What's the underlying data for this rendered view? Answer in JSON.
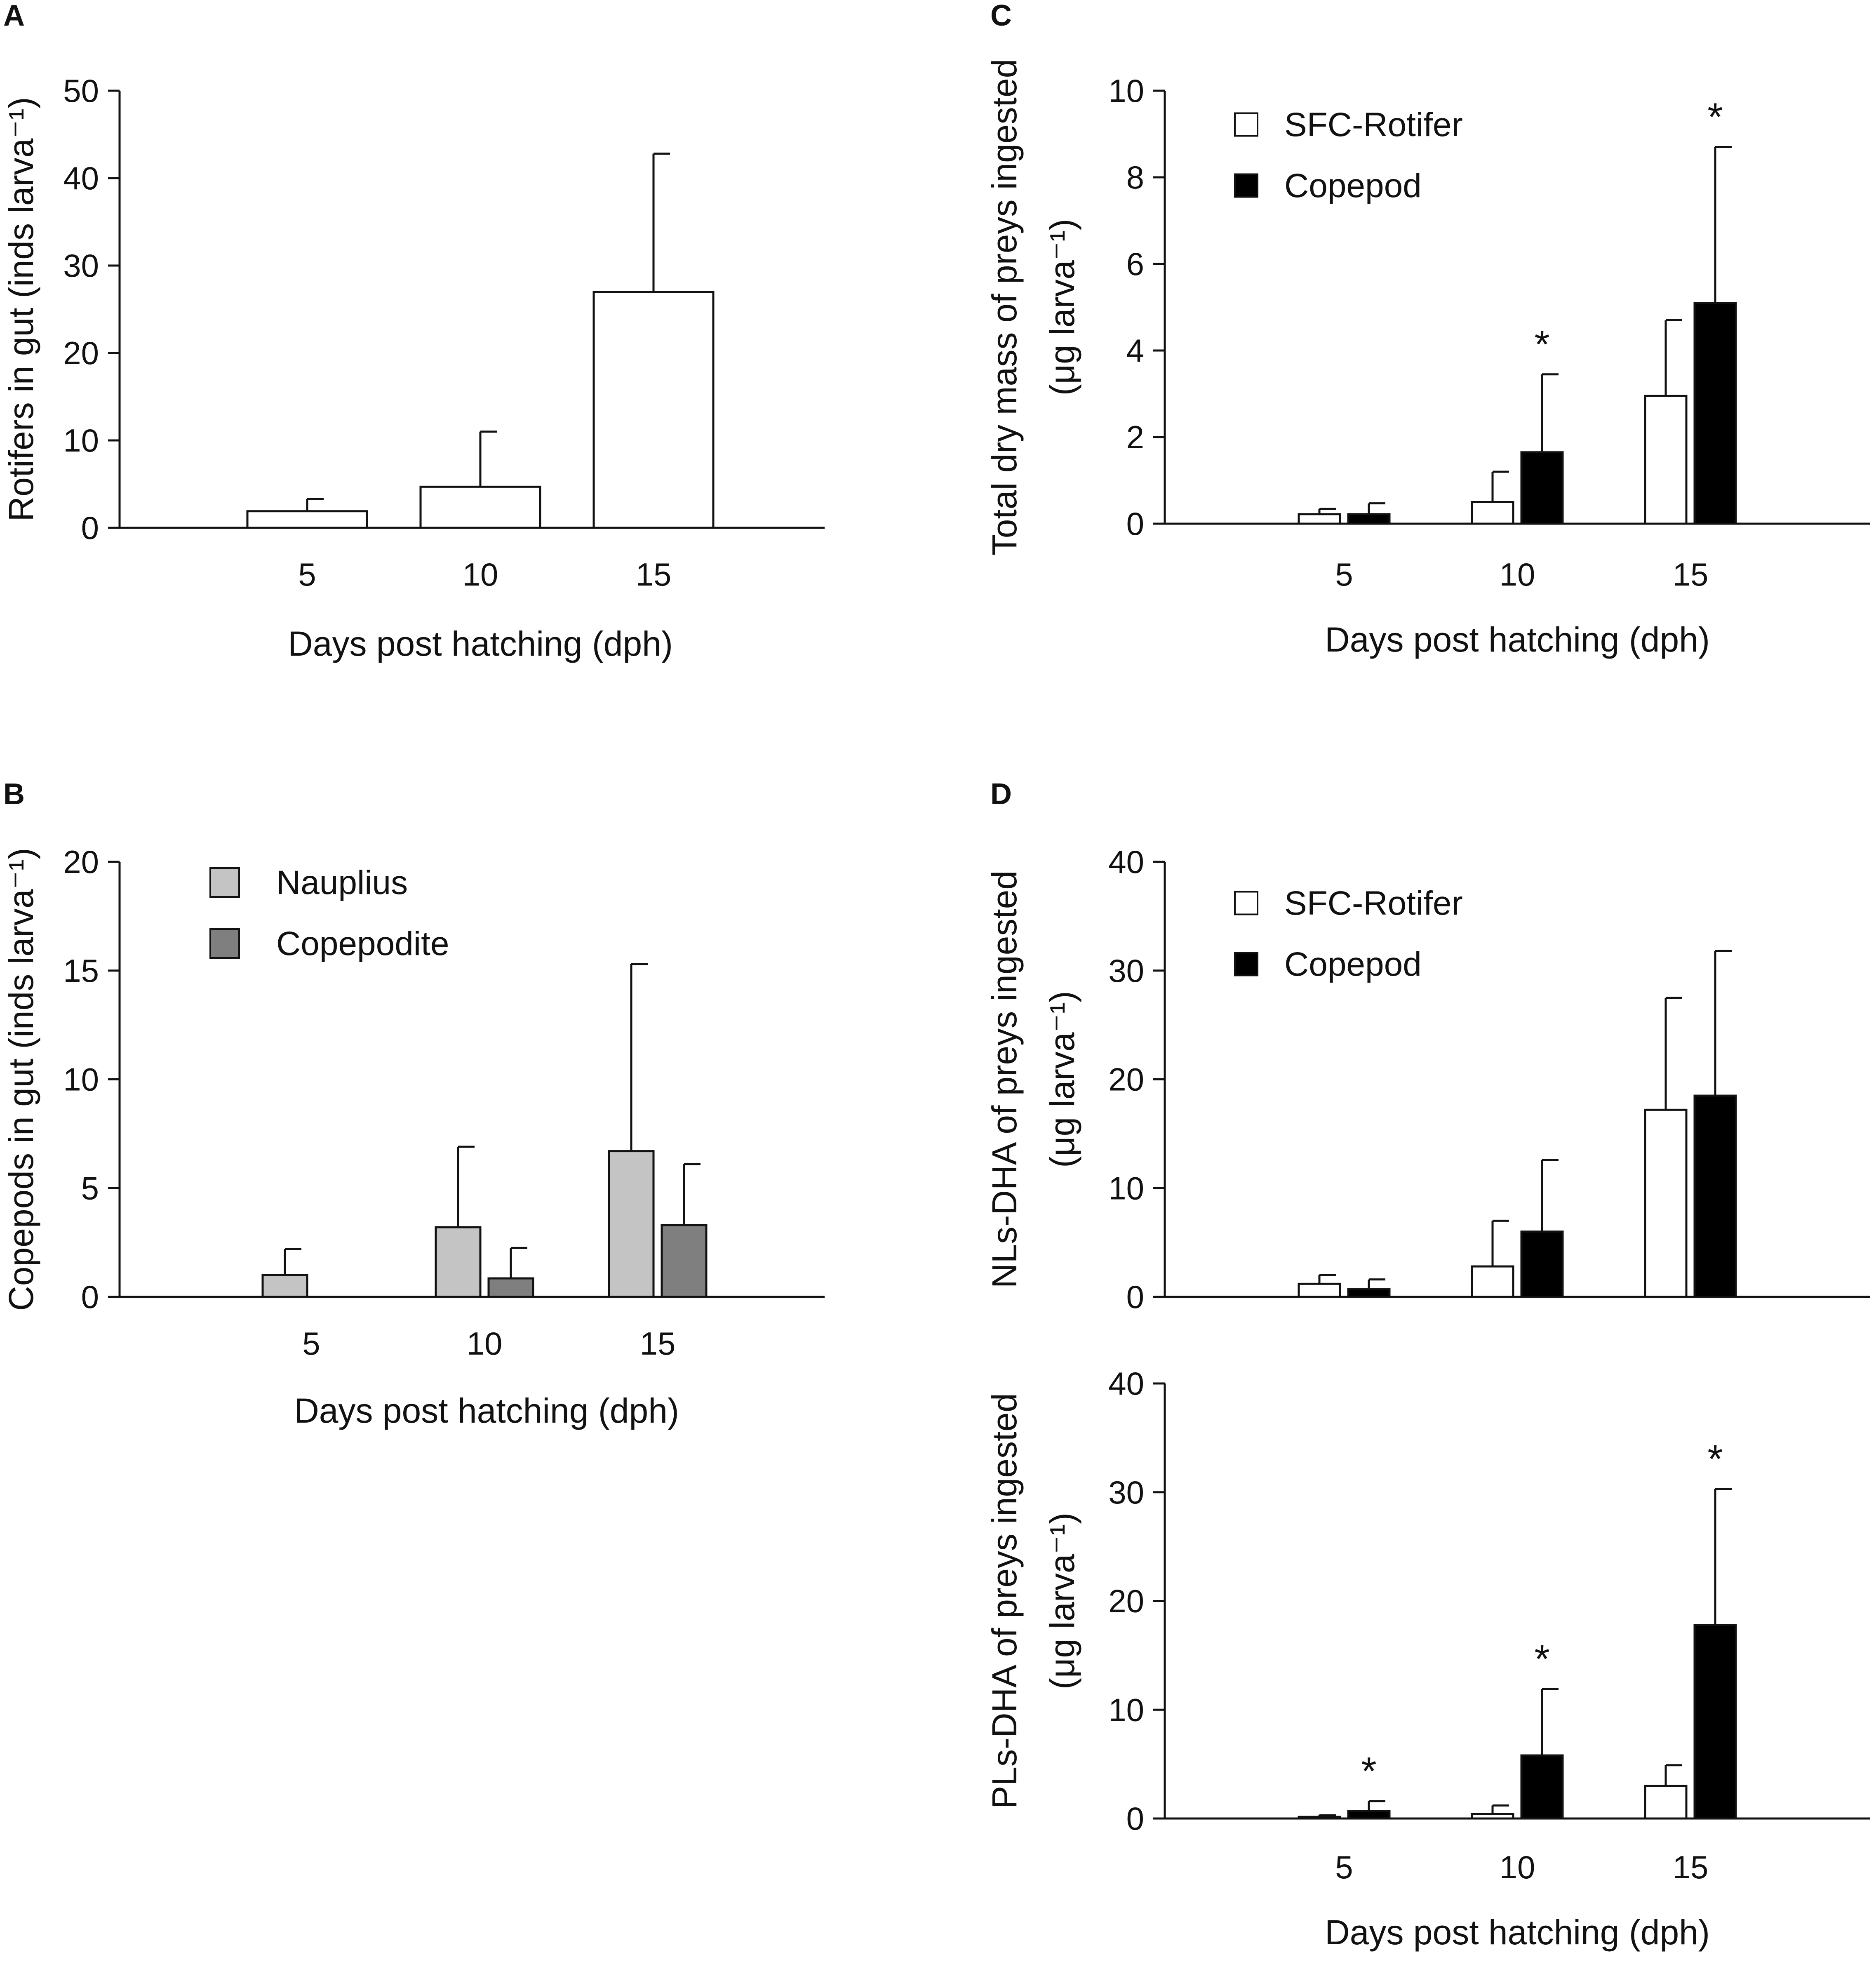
{
  "figure": {
    "panels": [
      "A",
      "B",
      "C",
      "D"
    ]
  },
  "colors": {
    "white_bar": "#ffffff",
    "black_bar": "#000000",
    "nauplius": "#c4c4c4",
    "copepodite": "#7f7f7f",
    "axis": "#111111"
  },
  "chart_data": [
    {
      "id": "A",
      "type": "bar",
      "panel_label": "A",
      "xlabel": "Days post hatching (dph)",
      "ylabel": "Rotifers in gut (inds larva⁻¹)",
      "ylim": [
        0,
        50
      ],
      "yticks": [
        0,
        10,
        20,
        30,
        40,
        50
      ],
      "categories": [
        "5",
        "10",
        "15"
      ],
      "series": [
        {
          "name": "Rotifer",
          "color": "#ffffff",
          "values": [
            1.9,
            4.7,
            27.0
          ],
          "errors": [
            1.4,
            6.3,
            15.8
          ],
          "sig": [
            "",
            "",
            ""
          ]
        }
      ],
      "legend": []
    },
    {
      "id": "B",
      "type": "bar",
      "panel_label": "B",
      "xlabel": "Days post hatching (dph)",
      "ylabel": "Copepods in gut (inds larva⁻¹)",
      "ylim": [
        0,
        20
      ],
      "yticks": [
        0,
        5,
        10,
        15,
        20
      ],
      "categories": [
        "5",
        "10",
        "15"
      ],
      "series": [
        {
          "name": "Nauplius",
          "color": "#c4c4c4",
          "values": [
            1.0,
            3.2,
            6.7
          ],
          "errors": [
            1.2,
            3.7,
            8.6
          ],
          "sig": [
            "",
            "",
            ""
          ]
        },
        {
          "name": "Copepodite",
          "color": "#7f7f7f",
          "values": [
            0.0,
            0.85,
            3.3
          ],
          "errors": [
            0.0,
            1.4,
            2.8
          ],
          "sig": [
            "",
            "",
            ""
          ]
        }
      ],
      "legend": [
        "Nauplius",
        "Copepodite"
      ]
    },
    {
      "id": "C",
      "type": "bar",
      "panel_label": "C",
      "xlabel": "Days post hatching (dph)",
      "ylabel": "Total dry mass of preys ingested",
      "ylabel2": "(μg larva⁻¹)",
      "ylim": [
        0,
        10
      ],
      "yticks": [
        0,
        2,
        4,
        6,
        8,
        10
      ],
      "categories": [
        "5",
        "10",
        "15"
      ],
      "series": [
        {
          "name": "SFC-Rotifer",
          "color": "#ffffff",
          "values": [
            0.22,
            0.5,
            2.95
          ],
          "errors": [
            0.12,
            0.7,
            1.75
          ],
          "sig": [
            "",
            "",
            ""
          ]
        },
        {
          "name": "Copepod",
          "color": "#000000",
          "values": [
            0.22,
            1.65,
            5.1
          ],
          "errors": [
            0.25,
            1.8,
            3.6
          ],
          "sig": [
            "",
            "*",
            "*"
          ]
        }
      ],
      "legend": [
        "SFC-Rotifer",
        "Copepod"
      ]
    },
    {
      "id": "D-top",
      "type": "bar",
      "panel_label": "D",
      "xlabel": "",
      "ylabel": "NLs-DHA of preys ingested",
      "ylabel2": "(μg larva⁻¹)",
      "ylim": [
        0,
        40
      ],
      "yticks": [
        0,
        10,
        20,
        30,
        40
      ],
      "categories": [
        "5",
        "10",
        "15"
      ],
      "series": [
        {
          "name": "SFC-Rotifer",
          "color": "#ffffff",
          "values": [
            1.2,
            2.8,
            17.2
          ],
          "errors": [
            0.8,
            4.2,
            10.3
          ],
          "sig": [
            "",
            "",
            ""
          ]
        },
        {
          "name": "Copepod",
          "color": "#000000",
          "values": [
            0.7,
            6.0,
            18.5
          ],
          "errors": [
            0.9,
            6.6,
            13.3
          ],
          "sig": [
            "",
            "",
            ""
          ]
        }
      ],
      "legend": [
        "SFC-Rotifer",
        "Copepod"
      ]
    },
    {
      "id": "D-bottom",
      "type": "bar",
      "panel_label": "",
      "xlabel": "Days post hatching (dph)",
      "ylabel": "PLs-DHA of preys ingested",
      "ylabel2": "(μg larva⁻¹)",
      "ylim": [
        0,
        40
      ],
      "yticks": [
        0,
        10,
        20,
        30,
        40
      ],
      "categories": [
        "5",
        "10",
        "15"
      ],
      "series": [
        {
          "name": "SFC-Rotifer",
          "color": "#ffffff",
          "values": [
            0.15,
            0.4,
            3.0
          ],
          "errors": [
            0.15,
            0.8,
            1.9
          ],
          "sig": [
            "",
            "",
            ""
          ]
        },
        {
          "name": "Copepod",
          "color": "#000000",
          "values": [
            0.7,
            5.8,
            17.8
          ],
          "errors": [
            0.9,
            6.1,
            12.5
          ],
          "sig": [
            "*",
            "*",
            "*"
          ]
        }
      ],
      "legend": []
    }
  ]
}
